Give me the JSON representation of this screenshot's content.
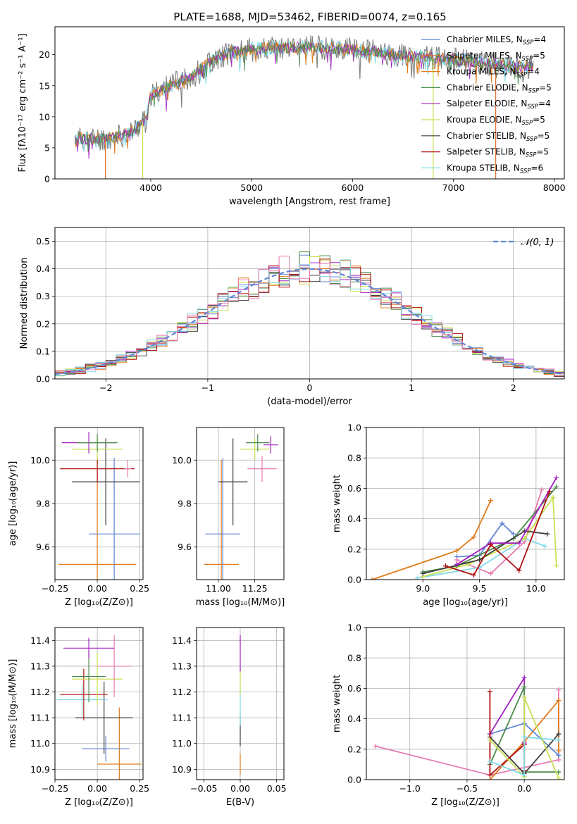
{
  "title": "PLATE=1688, MJD=53462, FIBERID=0074, z=0.165",
  "colors": {
    "chabrier_miles": "#5f86d6",
    "salpeter_miles": "#e0692a",
    "kroupa_miles": "#e07b1a",
    "chabrier_elodie": "#4a8a4a",
    "salpeter_elodie": "#a020c0",
    "kroupa_elodie": "#c8e050",
    "chabrier_stelib": "#404040",
    "salpeter_stelib": "#b01010",
    "kroupa_stelib": "#80d8e8",
    "pink": "#e87ab0",
    "gaussian": "#5f86d6"
  },
  "chart_data": [
    {
      "id": "spectrum",
      "type": "line",
      "xlabel": "wavelength [Angstrom, rest frame]",
      "ylabel": "Flux [fλ10⁻¹⁷ erg cm⁻² s⁻¹ A⁻¹]",
      "xlim": [
        3050,
        8100
      ],
      "ylim": [
        0,
        24.5
      ],
      "xticks": [
        4000,
        5000,
        6000,
        7000,
        8000
      ],
      "yticks": [
        0,
        5,
        10,
        15,
        20
      ],
      "legend": [
        {
          "label": "Chabrier MILES, N",
          "sub": "SSP",
          "tail": "=4",
          "color": "#5f86d6"
        },
        {
          "label": "Salpeter MILES, N",
          "sub": "SSP",
          "tail": "=5",
          "color": "#e0692a"
        },
        {
          "label": "Kroupa MILES, N",
          "sub": "SSP",
          "tail": "=4",
          "color": "#e07b1a"
        },
        {
          "label": "Chabrier ELODIE, N",
          "sub": "SSP",
          "tail": "=5",
          "color": "#4a8a4a"
        },
        {
          "label": "Salpeter ELODIE, N",
          "sub": "SSP",
          "tail": "=4",
          "color": "#a020c0"
        },
        {
          "label": "Kroupa ELODIE, N",
          "sub": "SSP",
          "tail": "=5",
          "color": "#c8e050"
        },
        {
          "label": "Chabrier STELIB, N",
          "sub": "SSP",
          "tail": "=5",
          "color": "#404040"
        },
        {
          "label": "Salpeter STELIB, N",
          "sub": "SSP",
          "tail": "=5",
          "color": "#b01010"
        },
        {
          "label": "Kroupa STELIB, N",
          "sub": "SSP",
          "tail": "=6",
          "color": "#80d8e8"
        }
      ],
      "continuum": {
        "x": [
          3250,
          3400,
          3600,
          3800,
          3950,
          4000,
          4200,
          4400,
          4600,
          4800,
          5000,
          5200,
          5400,
          5600,
          5800,
          6000,
          6200,
          6400,
          6600,
          6800,
          7000,
          7200,
          7400,
          7600,
          7800
        ],
        "y": [
          6.5,
          6.4,
          6.5,
          7.5,
          9.5,
          13.5,
          15,
          16.5,
          19,
          20.5,
          20.8,
          21,
          21.2,
          21.2,
          21,
          20.8,
          20.5,
          20,
          19.8,
          19.5,
          19.2,
          18.8,
          18.5,
          18.2,
          18
        ]
      },
      "cutoffs": [
        {
          "x": 3550,
          "color": "#e0692a"
        },
        {
          "x": 3920,
          "color": "#c8e050"
        },
        {
          "x": 6800,
          "color": "#c8e050"
        },
        {
          "x": 7420,
          "color": "#e0692a"
        }
      ]
    },
    {
      "id": "residuals",
      "type": "bar",
      "xlabel": "(data-model)/error",
      "ylabel": "Normed distribution",
      "xlim": [
        -2.5,
        2.5
      ],
      "ylim": [
        0,
        0.55
      ],
      "xticks": [
        -2,
        -1,
        0,
        1,
        2
      ],
      "xticklabels": [
        "−2",
        "−1",
        "0",
        "1",
        "2"
      ],
      "yticks": [
        0,
        0.1,
        0.2,
        0.3,
        0.4,
        0.5
      ],
      "yticklabels": [
        "0.0",
        "0.1",
        "0.2",
        "0.3",
        "0.4",
        "0.5"
      ],
      "legend": "𝒩(0, 1)",
      "bin_width": 0.1
    },
    {
      "id": "z-age",
      "type": "scatter",
      "xlabel": "Z [log₁₀(Z/Z⊙)]",
      "ylabel": "age  [log₁₀(age/yr)]",
      "xlim": [
        -0.25,
        0.27
      ],
      "ylim": [
        9.45,
        10.15
      ],
      "xticks": [
        -0.25,
        0,
        0.25
      ],
      "xticklabels": [
        "−0.25",
        "0.00",
        "0.25"
      ],
      "yticks": [
        9.6,
        9.8,
        10.0
      ],
      "yticklabels": [
        "9.6",
        "9.8",
        "10.0"
      ],
      "points": [
        {
          "x": 0.0,
          "y": 9.52,
          "ex": 0.23,
          "ey": 0.48,
          "color": "#e07b1a"
        },
        {
          "x": 0.1,
          "y": 9.66,
          "ex": 0.15,
          "ey": 0.35,
          "color": "#5f86d6"
        },
        {
          "x": 0.05,
          "y": 9.9,
          "ex": 0.2,
          "ey": 0.2,
          "color": "#404040"
        },
        {
          "x": 0.0,
          "y": 9.96,
          "ex": 0.22,
          "ey": 0.06,
          "color": "#b01010"
        },
        {
          "x": 0.18,
          "y": 9.96,
          "ex": 0.02,
          "ey": 0.04,
          "color": "#e87ab0"
        },
        {
          "x": 0.0,
          "y": 10.05,
          "ex": 0.15,
          "ey": 0.05,
          "color": "#c8e050"
        },
        {
          "x": -0.05,
          "y": 10.08,
          "ex": 0.16,
          "ey": 0.05,
          "color": "#a020c0"
        },
        {
          "x": 0.0,
          "y": 10.08,
          "ex": 0.12,
          "ey": 0.04,
          "color": "#4a8a4a"
        }
      ]
    },
    {
      "id": "mass-age",
      "type": "scatter",
      "xlabel": "mass [log₁₀(M/M⊙)]",
      "xlim": [
        10.85,
        11.45
      ],
      "ylim": [
        9.45,
        10.15
      ],
      "xticks": [
        11.0,
        11.25
      ],
      "xticklabels": [
        "11.00",
        "11.25"
      ],
      "yticks": [
        9.6,
        9.8,
        10.0
      ],
      "yticklabels": [
        "9.6",
        "9.8",
        "10.0"
      ],
      "points": [
        {
          "x": 11.02,
          "y": 9.52,
          "ex": 0.12,
          "ey": 0.48,
          "color": "#e07b1a"
        },
        {
          "x": 11.03,
          "y": 9.66,
          "ex": 0.12,
          "ey": 0.35,
          "color": "#5f86d6"
        },
        {
          "x": 11.1,
          "y": 9.9,
          "ex": 0.1,
          "ey": 0.2,
          "color": "#404040"
        },
        {
          "x": 11.3,
          "y": 9.96,
          "ex": 0.1,
          "ey": 0.06,
          "color": "#e87ab0"
        },
        {
          "x": 11.25,
          "y": 10.05,
          "ex": 0.1,
          "ey": 0.05,
          "color": "#c8e050"
        },
        {
          "x": 11.36,
          "y": 10.07,
          "ex": 0.05,
          "ey": 0.04,
          "color": "#a020c0"
        },
        {
          "x": 11.27,
          "y": 10.08,
          "ex": 0.08,
          "ey": 0.04,
          "color": "#4a8a4a"
        }
      ]
    },
    {
      "id": "age-weight",
      "type": "line",
      "xlabel": "age  [log₁₀(age/yr)]",
      "ylabel": "mass weight",
      "xlim": [
        8.5,
        10.25
      ],
      "ylim": [
        0,
        1
      ],
      "xticks": [
        9.0,
        9.5,
        10.0
      ],
      "xticklabels": [
        "9.0",
        "9.5",
        "10.0"
      ],
      "yticks": [
        0,
        0.2,
        0.4,
        0.6,
        0.8,
        1.0
      ],
      "yticklabels": [
        "0.0",
        "0.2",
        "0.4",
        "0.6",
        "0.8",
        "1.0"
      ],
      "series": [
        {
          "color": "#e07b1a",
          "x": [
            8.55,
            9.3,
            9.45,
            9.6
          ],
          "y": [
            0.0,
            0.19,
            0.28,
            0.52
          ]
        },
        {
          "color": "#5f86d6",
          "x": [
            9.3,
            9.5,
            9.7,
            9.8
          ],
          "y": [
            0.15,
            0.16,
            0.37,
            0.3
          ]
        },
        {
          "color": "#e87ab0",
          "x": [
            9.3,
            9.6,
            9.9,
            10.05
          ],
          "y": [
            0.13,
            0.04,
            0.25,
            0.59
          ]
        },
        {
          "color": "#80d8e8",
          "x": [
            8.95,
            9.5,
            9.9,
            10.08
          ],
          "y": [
            0.01,
            0.08,
            0.27,
            0.22
          ]
        },
        {
          "color": "#c8e050",
          "x": [
            9.0,
            9.4,
            9.9,
            10.15,
            10.18
          ],
          "y": [
            0.02,
            0.1,
            0.27,
            0.54,
            0.09
          ]
        },
        {
          "color": "#4a8a4a",
          "x": [
            9.0,
            9.3,
            9.8,
            10.18
          ],
          "y": [
            0.05,
            0.09,
            0.27,
            0.61
          ]
        },
        {
          "color": "#404040",
          "x": [
            9.0,
            9.5,
            9.9,
            10.1
          ],
          "y": [
            0.04,
            0.13,
            0.32,
            0.3
          ]
        },
        {
          "color": "#a020c0",
          "x": [
            9.3,
            9.6,
            9.85,
            10.18
          ],
          "y": [
            0.1,
            0.24,
            0.24,
            0.67
          ]
        },
        {
          "color": "#b01010",
          "x": [
            9.2,
            9.45,
            9.6,
            9.85,
            10.12
          ],
          "y": [
            0.09,
            0.03,
            0.23,
            0.06,
            0.58
          ]
        }
      ]
    },
    {
      "id": "z-mass",
      "type": "scatter",
      "xlabel": "Z [log₁₀(Z/Z⊙)]",
      "ylabel": "mass [log₁₀(M/M⊙)]",
      "xlim": [
        -0.25,
        0.27
      ],
      "ylim": [
        10.86,
        11.45
      ],
      "xticks": [
        -0.25,
        0,
        0.25
      ],
      "xticklabels": [
        "−0.25",
        "0.00",
        "0.25"
      ],
      "yticks": [
        10.9,
        11.0,
        11.1,
        11.2,
        11.3,
        11.4
      ],
      "yticklabels": [
        "10.9",
        "11.0",
        "11.1",
        "11.2",
        "11.3",
        "11.4"
      ],
      "points": [
        {
          "x": 0.13,
          "y": 10.92,
          "ex": 0.13,
          "ey": 0.22,
          "color": "#e07b1a"
        },
        {
          "x": 0.05,
          "y": 10.98,
          "ex": 0.14,
          "ey": 0.05,
          "color": "#5f86d6"
        },
        {
          "x": 0.04,
          "y": 11.1,
          "ex": 0.17,
          "ey": 0.14,
          "color": "#404040"
        },
        {
          "x": -0.09,
          "y": 11.17,
          "ex": 0.15,
          "ey": 0.06,
          "color": "#80d8e8"
        },
        {
          "x": -0.08,
          "y": 11.19,
          "ex": 0.14,
          "ey": 0.1,
          "color": "#b01010"
        },
        {
          "x": 0.0,
          "y": 11.25,
          "ex": 0.15,
          "ey": 0.1,
          "color": "#c8e050"
        },
        {
          "x": -0.05,
          "y": 11.26,
          "ex": 0.1,
          "ey": 0.1,
          "color": "#4a8a4a"
        },
        {
          "x": 0.1,
          "y": 11.3,
          "ex": 0.1,
          "ey": 0.12,
          "color": "#e87ab0"
        },
        {
          "x": -0.05,
          "y": 11.37,
          "ex": 0.15,
          "ey": 0.04,
          "color": "#a020c0"
        }
      ]
    },
    {
      "id": "ebv-mass",
      "type": "scatter",
      "xlabel": "E(B-V)",
      "xlim": [
        -0.06,
        0.06
      ],
      "ylim": [
        10.86,
        11.45
      ],
      "xticks": [
        -0.05,
        0,
        0.05
      ],
      "xticklabels": [
        "−0.05",
        "0.00",
        "0.05"
      ],
      "yticks": [
        10.9,
        11.0,
        11.1,
        11.2,
        11.3,
        11.4
      ],
      "yticklabels": [
        "10.9",
        "11.0",
        "11.1",
        "11.2",
        "11.3",
        "11.4"
      ],
      "points": [
        {
          "x": 0,
          "y": 10.92,
          "ex": 0,
          "ey": 0.04,
          "color": "#e07b1a"
        },
        {
          "x": 0,
          "y": 11.05,
          "ex": 0,
          "ey": 0.06,
          "color": "#404040"
        },
        {
          "x": 0,
          "y": 11.15,
          "ex": 0,
          "ey": 0.08,
          "color": "#80d8e8"
        },
        {
          "x": 0,
          "y": 11.25,
          "ex": 0,
          "ey": 0.06,
          "color": "#c8e050"
        },
        {
          "x": 0,
          "y": 11.35,
          "ex": 0,
          "ey": 0.07,
          "color": "#a020c0"
        }
      ]
    },
    {
      "id": "z-weight",
      "type": "line",
      "xlabel": "Z [log₁₀(Z/Z⊙)]",
      "ylabel": "mass weight",
      "xlim": [
        -1.38,
        0.35
      ],
      "ylim": [
        0,
        1
      ],
      "xticks": [
        -1.0,
        -0.5,
        0.0
      ],
      "xticklabels": [
        "−1.0",
        "−0.5",
        "0.0"
      ],
      "yticks": [
        0,
        0.2,
        0.4,
        0.6,
        0.8,
        1.0
      ],
      "yticklabels": [
        "0.0",
        "0.2",
        "0.4",
        "0.6",
        "0.8",
        "1.0"
      ],
      "series": [
        {
          "color": "#e87ab0",
          "x": [
            -1.3,
            -0.3,
            0.3,
            0.3
          ],
          "y": [
            0.22,
            0.03,
            0.13,
            0.59
          ]
        },
        {
          "color": "#e07b1a",
          "x": [
            -0.3,
            0.0,
            0.3,
            0.3
          ],
          "y": [
            0.0,
            0.25,
            0.52,
            0.19
          ]
        },
        {
          "color": "#5f86d6",
          "x": [
            -0.3,
            0.0,
            0.3
          ],
          "y": [
            0.3,
            0.37,
            0.16
          ]
        },
        {
          "color": "#a020c0",
          "x": [
            -0.3,
            0.0,
            0.0
          ],
          "y": [
            0.3,
            0.67,
            0.24
          ]
        },
        {
          "color": "#4a8a4a",
          "x": [
            -0.3,
            0.0,
            0.0,
            0.3
          ],
          "y": [
            0.1,
            0.61,
            0.05,
            0.05
          ]
        },
        {
          "color": "#404040",
          "x": [
            -0.3,
            0.0,
            0.3
          ],
          "y": [
            0.28,
            0.04,
            0.3
          ]
        },
        {
          "color": "#b01010",
          "x": [
            -0.3,
            -0.3,
            0.0,
            0.0
          ],
          "y": [
            0.58,
            0.03,
            0.23,
            0.06
          ]
        },
        {
          "color": "#c8e050",
          "x": [
            -0.3,
            0.0,
            0.0,
            0.3
          ],
          "y": [
            0.26,
            0.02,
            0.54,
            0.01
          ]
        },
        {
          "color": "#80d8e8",
          "x": [
            -0.3,
            0.0,
            0.0,
            0.3
          ],
          "y": [
            0.12,
            0.03,
            0.28,
            0.26
          ]
        }
      ]
    }
  ]
}
